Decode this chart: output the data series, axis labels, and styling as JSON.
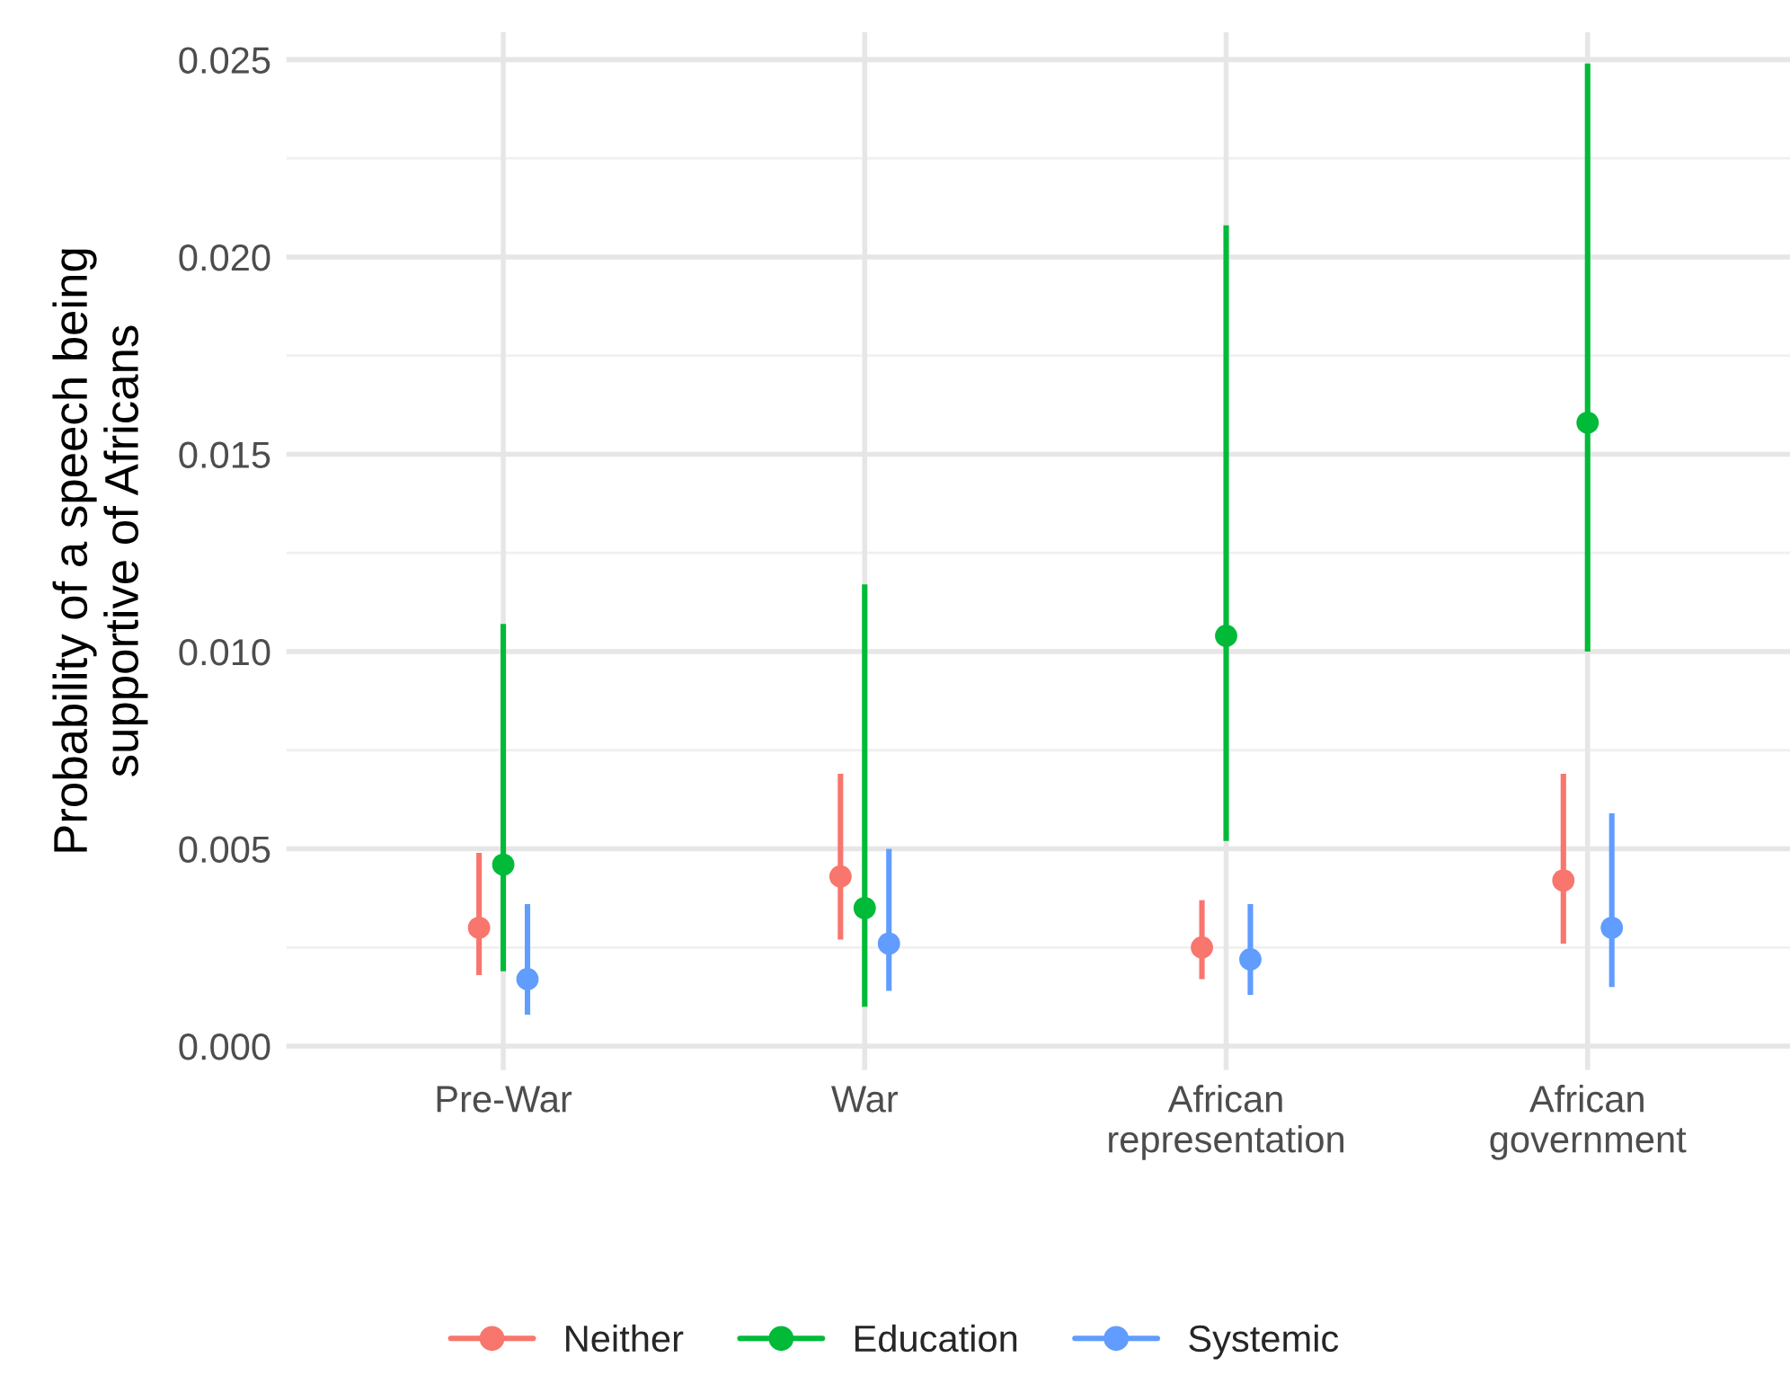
{
  "chart_data": {
    "type": "scatter",
    "ylabel": "Probability of a speech being\nsupportive of Africans",
    "categories": [
      "Pre-War",
      "War",
      "African\nrepresentation",
      "African\ngovernment"
    ],
    "series": [
      {
        "name": "Neither",
        "color": "#f8766d",
        "values": [
          0.003,
          0.0043,
          0.0025,
          0.0042
        ],
        "errors": [
          [
            0.0018,
            0.0049
          ],
          [
            0.0027,
            0.0069
          ],
          [
            0.0017,
            0.0037
          ],
          [
            0.0026,
            0.0069
          ]
        ]
      },
      {
        "name": "Education",
        "color": "#00ba38",
        "values": [
          0.0046,
          0.0035,
          0.0104,
          0.0158
        ],
        "errors": [
          [
            0.0019,
            0.0107
          ],
          [
            0.001,
            0.0117
          ],
          [
            0.0052,
            0.0208
          ],
          [
            0.01,
            0.0249
          ]
        ]
      },
      {
        "name": "Systemic",
        "color": "#619cff",
        "values": [
          0.0017,
          0.0026,
          0.0022,
          0.003
        ],
        "errors": [
          [
            0.0008,
            0.0036
          ],
          [
            0.0014,
            0.005
          ],
          [
            0.0013,
            0.0036
          ],
          [
            0.0015,
            0.0059
          ]
        ]
      }
    ],
    "ylim": [
      -0.0006,
      0.0257
    ],
    "yticks": [
      {
        "value": 0,
        "label": "0.000"
      },
      {
        "value": 0.005,
        "label": "0.005"
      },
      {
        "value": 0.01,
        "label": "0.010"
      },
      {
        "value": 0.015,
        "label": "0.015"
      },
      {
        "value": 0.02,
        "label": "0.020"
      },
      {
        "value": 0.025,
        "label": "0.025"
      }
    ],
    "grid": true,
    "legend": "bottom",
    "marker": "circle"
  }
}
